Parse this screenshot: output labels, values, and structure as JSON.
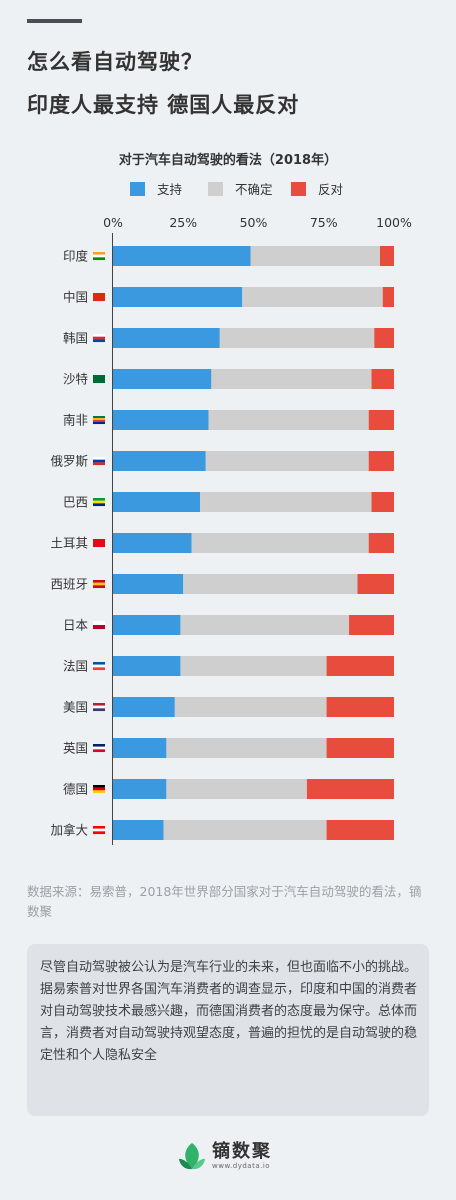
{
  "header": {
    "title_line1": "怎么看自动驾驶？",
    "title_line2": "印度人最支持  德国人最反对"
  },
  "chart_data": {
    "type": "bar",
    "orientation": "horizontal",
    "stacked": true,
    "title": "对于汽车自动驾驶的看法（2018年）",
    "categories": [
      "印度",
      "中国",
      "韩国",
      "沙特",
      "南非",
      "俄罗斯",
      "巴西",
      "土耳其",
      "西班牙",
      "日本",
      "法国",
      "美国",
      "英国",
      "德国",
      "加拿大"
    ],
    "series": [
      {
        "name": "支持",
        "color": "#3b99e0",
        "values": [
          49,
          46,
          38,
          35,
          34,
          33,
          31,
          28,
          25,
          24,
          24,
          22,
          19,
          19,
          18
        ]
      },
      {
        "name": "不确定",
        "color": "#cfcfcf",
        "values": [
          46,
          50,
          55,
          57,
          57,
          58,
          61,
          63,
          62,
          60,
          52,
          54,
          57,
          50,
          58
        ]
      },
      {
        "name": "反对",
        "color": "#e84c3d",
        "values": [
          5,
          4,
          7,
          8,
          9,
          9,
          8,
          9,
          13,
          16,
          24,
          24,
          24,
          31,
          24
        ]
      }
    ],
    "x_ticks": [
      "0%",
      "25%",
      "50%",
      "75%",
      "100%"
    ],
    "xlim": [
      0,
      100
    ],
    "legend_position": "top",
    "grid": false
  },
  "source": "数据来源：易索普，2018年世界部分国家对于汽车自动驾驶的看法，镝数聚",
  "description": "尽管自动驾驶被公认为是汽车行业的未来，但也面临不小的挑战。据易索普对世界各国汽车消费者的调查显示，印度和中国的消费者对自动驾驶技术最感兴趣，而德国消费者的态度最为保守。总体而言，消费者对自动驾驶持观望态度，普遍的担忧的是自动驾驶的稳定性和个人隐私安全",
  "brand": {
    "name": "镝数聚",
    "url": "www.dydata.io"
  },
  "flags": [
    {
      "colors": [
        "#ff9933",
        "#ffffff",
        "#138808"
      ]
    },
    {
      "colors": [
        "#de2910"
      ]
    },
    {
      "colors": [
        "#ffffff",
        "#cd2e3a",
        "#0047a0"
      ]
    },
    {
      "colors": [
        "#006c35"
      ]
    },
    {
      "colors": [
        "#007a4d",
        "#ffb612",
        "#de3831",
        "#002395"
      ]
    },
    {
      "colors": [
        "#ffffff",
        "#0039a6",
        "#d52b1e"
      ]
    },
    {
      "colors": [
        "#009c3b",
        "#ffdf00",
        "#002776"
      ]
    },
    {
      "colors": [
        "#e30a17"
      ]
    },
    {
      "colors": [
        "#c60b1e",
        "#ffc400",
        "#c60b1e"
      ]
    },
    {
      "colors": [
        "#ffffff",
        "#bc002d"
      ]
    },
    {
      "colors": [
        "#0055a4",
        "#ffffff",
        "#ef4135"
      ]
    },
    {
      "colors": [
        "#b22234",
        "#ffffff",
        "#3c3b6e"
      ]
    },
    {
      "colors": [
        "#012169",
        "#ffffff",
        "#c8102e"
      ]
    },
    {
      "colors": [
        "#000000",
        "#dd0000",
        "#ffce00"
      ]
    },
    {
      "colors": [
        "#ff0000",
        "#ffffff",
        "#ff0000"
      ]
    }
  ]
}
